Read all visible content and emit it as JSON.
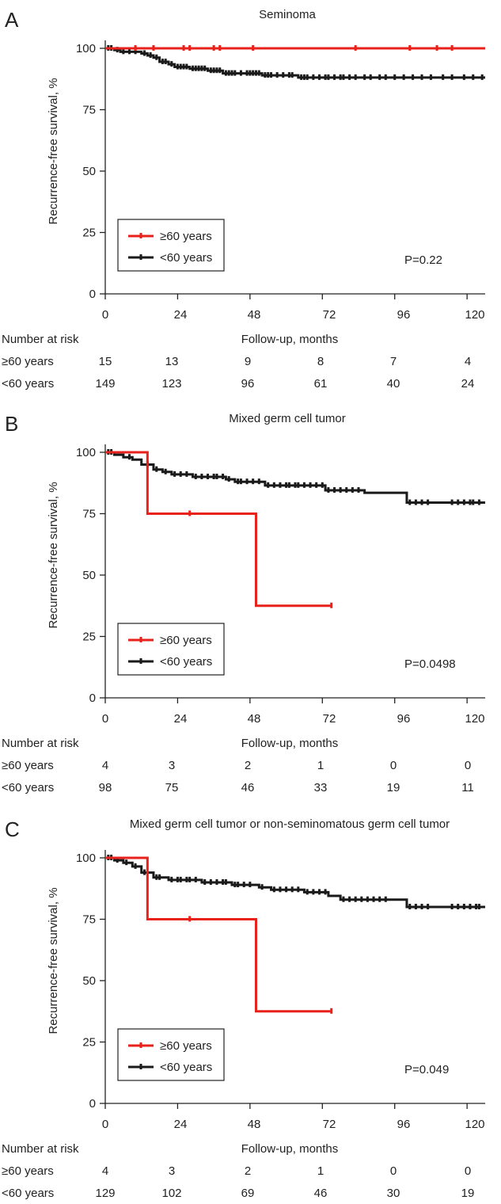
{
  "chart_data": [
    {
      "panel": "A",
      "type": "line",
      "title": "Seminoma",
      "xlabel": "Follow-up, months",
      "ylabel": "Recurrence-free survival, %",
      "xlim": [
        0,
        126
      ],
      "ylim": [
        0,
        103
      ],
      "xticks": [
        "0",
        "24",
        "48",
        "72",
        "96",
        "120"
      ],
      "yticks": [
        "0",
        "25",
        "50",
        "75",
        "100"
      ],
      "p_value": "P=0.22",
      "series": [
        {
          "name": "≥60 years",
          "color": "#e8211b",
          "steps": [
            [
              0,
              100
            ],
            [
              126,
              100
            ]
          ],
          "censor": [
            [
              10,
              100
            ],
            [
              16,
              100
            ],
            [
              26,
              100
            ],
            [
              28,
              100
            ],
            [
              36,
              100
            ],
            [
              38,
              100
            ],
            [
              49,
              100
            ],
            [
              83,
              100
            ],
            [
              101,
              100
            ],
            [
              110,
              100
            ],
            [
              115,
              100
            ]
          ]
        },
        {
          "name": "<60 years",
          "color": "#1a1a1a",
          "steps": [
            [
              0,
              100
            ],
            [
              3,
              99.3
            ],
            [
              5,
              98.6
            ],
            [
              12,
              97.9
            ],
            [
              14,
              97.1
            ],
            [
              16,
              96.2
            ],
            [
              18,
              94.5
            ],
            [
              21,
              93.5
            ],
            [
              23,
              92.4
            ],
            [
              28,
              91.7
            ],
            [
              34,
              90.9
            ],
            [
              39,
              89.8
            ],
            [
              52,
              89.0
            ],
            [
              64,
              88.1
            ],
            [
              126,
              88.1
            ]
          ],
          "censor": [
            [
              1,
              100
            ],
            [
              2,
              100
            ],
            [
              4,
              99.3
            ],
            [
              6,
              98.6
            ],
            [
              8,
              98.6
            ],
            [
              10,
              98.6
            ],
            [
              13,
              97.9
            ],
            [
              15,
              97.1
            ],
            [
              17,
              96.2
            ],
            [
              19,
              94.5
            ],
            [
              20,
              94.5
            ],
            [
              22,
              93.5
            ],
            [
              24,
              92.4
            ],
            [
              25,
              92.4
            ],
            [
              26,
              92.4
            ],
            [
              27,
              92.4
            ],
            [
              29,
              91.7
            ],
            [
              30,
              91.7
            ],
            [
              31,
              91.7
            ],
            [
              32,
              91.7
            ],
            [
              33,
              91.7
            ],
            [
              35,
              90.9
            ],
            [
              36,
              90.9
            ],
            [
              37,
              90.9
            ],
            [
              38,
              90.9
            ],
            [
              40,
              89.8
            ],
            [
              41,
              89.8
            ],
            [
              42,
              89.8
            ],
            [
              43,
              89.8
            ],
            [
              45,
              89.8
            ],
            [
              47,
              89.8
            ],
            [
              48,
              89.8
            ],
            [
              49,
              89.8
            ],
            [
              50,
              89.8
            ],
            [
              51,
              89.8
            ],
            [
              53,
              89.0
            ],
            [
              54,
              89.0
            ],
            [
              55,
              89.0
            ],
            [
              57,
              89.0
            ],
            [
              59,
              89.0
            ],
            [
              61,
              89.0
            ],
            [
              62,
              89.0
            ],
            [
              65,
              88.1
            ],
            [
              66,
              88.1
            ],
            [
              67,
              88.1
            ],
            [
              69,
              88.1
            ],
            [
              71,
              88.1
            ],
            [
              73,
              88.1
            ],
            [
              74,
              88.1
            ],
            [
              76,
              88.1
            ],
            [
              78,
              88.1
            ],
            [
              79,
              88.1
            ],
            [
              81,
              88.1
            ],
            [
              83,
              88.1
            ],
            [
              86,
              88.1
            ],
            [
              88,
              88.1
            ],
            [
              91,
              88.1
            ],
            [
              93,
              88.1
            ],
            [
              96,
              88.1
            ],
            [
              99,
              88.1
            ],
            [
              102,
              88.1
            ],
            [
              105,
              88.1
            ],
            [
              108,
              88.1
            ],
            [
              112,
              88.1
            ],
            [
              115,
              88.1
            ],
            [
              119,
              88.1
            ],
            [
              122,
              88.1
            ],
            [
              125,
              88.1
            ]
          ]
        }
      ],
      "risk_table": {
        "header": "Number at risk",
        "rows": [
          {
            "label": "≥60 years",
            "values": [
              "15",
              "13",
              "9",
              "8",
              "7",
              "4"
            ]
          },
          {
            "label": "<60 years",
            "values": [
              "149",
              "123",
              "96",
              "61",
              "40",
              "24"
            ]
          }
        ]
      }
    },
    {
      "panel": "B",
      "type": "line",
      "title": "Mixed germ cell tumor",
      "xlabel": "Follow-up, months",
      "ylabel": "Recurrence-free survival, %",
      "xlim": [
        0,
        126
      ],
      "ylim": [
        0,
        103
      ],
      "xticks": [
        "0",
        "24",
        "48",
        "72",
        "96",
        "120"
      ],
      "yticks": [
        "0",
        "25",
        "50",
        "75",
        "100"
      ],
      "p_value": "P=0.0498",
      "series": [
        {
          "name": "≥60 years",
          "color": "#e8211b",
          "steps": [
            [
              0,
              100
            ],
            [
              14,
              75
            ],
            [
              50,
              37.5
            ],
            [
              75,
              37.5
            ]
          ],
          "censor": [
            [
              28,
              75
            ],
            [
              75,
              37.5
            ]
          ]
        },
        {
          "name": "<60 years",
          "color": "#1a1a1a",
          "steps": [
            [
              0,
              100
            ],
            [
              3,
              99
            ],
            [
              6,
              98
            ],
            [
              9,
              97
            ],
            [
              12,
              95
            ],
            [
              16,
              93
            ],
            [
              19,
              92
            ],
            [
              22,
              91
            ],
            [
              29,
              90
            ],
            [
              40,
              89
            ],
            [
              43,
              88
            ],
            [
              53,
              86.5
            ],
            [
              73,
              84.5
            ],
            [
              86,
              83.5
            ],
            [
              100,
              79.5
            ],
            [
              126,
              79.5
            ]
          ],
          "censor": [
            [
              1,
              100
            ],
            [
              2,
              100
            ],
            [
              8,
              98
            ],
            [
              14,
              95
            ],
            [
              17,
              93
            ],
            [
              20,
              92
            ],
            [
              23,
              91
            ],
            [
              25,
              91
            ],
            [
              27,
              91
            ],
            [
              30,
              90
            ],
            [
              32,
              90
            ],
            [
              34,
              90
            ],
            [
              36,
              90
            ],
            [
              37,
              90
            ],
            [
              39,
              90
            ],
            [
              41,
              89
            ],
            [
              44,
              88
            ],
            [
              45,
              88
            ],
            [
              47,
              88
            ],
            [
              49,
              88
            ],
            [
              51,
              88
            ],
            [
              54,
              86.5
            ],
            [
              56,
              86.5
            ],
            [
              58,
              86.5
            ],
            [
              60,
              86.5
            ],
            [
              61,
              86.5
            ],
            [
              63,
              86.5
            ],
            [
              64,
              86.5
            ],
            [
              66,
              86.5
            ],
            [
              68,
              86.5
            ],
            [
              70,
              86.5
            ],
            [
              72,
              86.5
            ],
            [
              74,
              84.5
            ],
            [
              76,
              84.5
            ],
            [
              78,
              84.5
            ],
            [
              80,
              84.5
            ],
            [
              82,
              84.5
            ],
            [
              84,
              84.5
            ],
            [
              101,
              79.5
            ],
            [
              103,
              79.5
            ],
            [
              105,
              79.5
            ],
            [
              107,
              79.5
            ],
            [
              115,
              79.5
            ],
            [
              117,
              79.5
            ],
            [
              119,
              79.5
            ],
            [
              121,
              79.5
            ],
            [
              122,
              79.5
            ],
            [
              124,
              79.5
            ]
          ]
        }
      ],
      "risk_table": {
        "header": "Number at risk",
        "rows": [
          {
            "label": "≥60 years",
            "values": [
              "4",
              "3",
              "2",
              "1",
              "0",
              "0"
            ]
          },
          {
            "label": "<60 years",
            "values": [
              "98",
              "75",
              "46",
              "33",
              "19",
              "11"
            ]
          }
        ]
      }
    },
    {
      "panel": "C",
      "type": "line",
      "title": "Mixed germ cell tumor or non-seminomatous germ cell tumor",
      "xlabel": "Follow-up, months",
      "ylabel": "Recurrence-free survival, %",
      "xlim": [
        0,
        126
      ],
      "ylim": [
        0,
        103
      ],
      "xticks": [
        "0",
        "24",
        "48",
        "72",
        "96",
        "120"
      ],
      "yticks": [
        "0",
        "25",
        "50",
        "75",
        "100"
      ],
      "p_value": "P=0.049",
      "series": [
        {
          "name": "≥60 years",
          "color": "#e8211b",
          "steps": [
            [
              0,
              100
            ],
            [
              14,
              75
            ],
            [
              50,
              37.5
            ],
            [
              75,
              37.5
            ]
          ],
          "censor": [
            [
              28,
              75
            ],
            [
              75,
              37.5
            ]
          ]
        },
        {
          "name": "<60 years",
          "color": "#1a1a1a",
          "steps": [
            [
              0,
              100
            ],
            [
              3,
              99
            ],
            [
              6,
              98
            ],
            [
              9,
              96.5
            ],
            [
              12,
              94
            ],
            [
              16,
              92
            ],
            [
              21,
              91
            ],
            [
              32,
              90
            ],
            [
              42,
              89
            ],
            [
              51,
              88
            ],
            [
              55,
              87
            ],
            [
              66,
              86
            ],
            [
              74,
              84.5
            ],
            [
              78,
              83
            ],
            [
              100,
              80
            ],
            [
              126,
              80
            ]
          ],
          "censor": [
            [
              1,
              100
            ],
            [
              2,
              100
            ],
            [
              4,
              99
            ],
            [
              7,
              98
            ],
            [
              10,
              96.5
            ],
            [
              13,
              94
            ],
            [
              17,
              92
            ],
            [
              18,
              92
            ],
            [
              22,
              91
            ],
            [
              24,
              91
            ],
            [
              25,
              91
            ],
            [
              27,
              91
            ],
            [
              28,
              91
            ],
            [
              30,
              91
            ],
            [
              33,
              90
            ],
            [
              35,
              90
            ],
            [
              37,
              90
            ],
            [
              39,
              90
            ],
            [
              40,
              90
            ],
            [
              43,
              89
            ],
            [
              44,
              89
            ],
            [
              46,
              89
            ],
            [
              48,
              89
            ],
            [
              52,
              88
            ],
            [
              56,
              87
            ],
            [
              58,
              87
            ],
            [
              60,
              87
            ],
            [
              62,
              87
            ],
            [
              64,
              87
            ],
            [
              67,
              86
            ],
            [
              69,
              86
            ],
            [
              71,
              86
            ],
            [
              73,
              86
            ],
            [
              79,
              83
            ],
            [
              81,
              83
            ],
            [
              83,
              83
            ],
            [
              85,
              83
            ],
            [
              87,
              83
            ],
            [
              89,
              83
            ],
            [
              91,
              83
            ],
            [
              93,
              83
            ],
            [
              101,
              80
            ],
            [
              103,
              80
            ],
            [
              105,
              80
            ],
            [
              107,
              80
            ],
            [
              115,
              80
            ],
            [
              117,
              80
            ],
            [
              119,
              80
            ],
            [
              121,
              80
            ],
            [
              123,
              80
            ],
            [
              124,
              80
            ]
          ]
        }
      ],
      "risk_table": {
        "header": "Number at risk",
        "rows": [
          {
            "label": "≥60 years",
            "values": [
              "4",
              "3",
              "2",
              "1",
              "0",
              "0"
            ]
          },
          {
            "label": "<60 years",
            "values": [
              "129",
              "102",
              "69",
              "46",
              "30",
              "19"
            ]
          }
        ]
      }
    }
  ]
}
